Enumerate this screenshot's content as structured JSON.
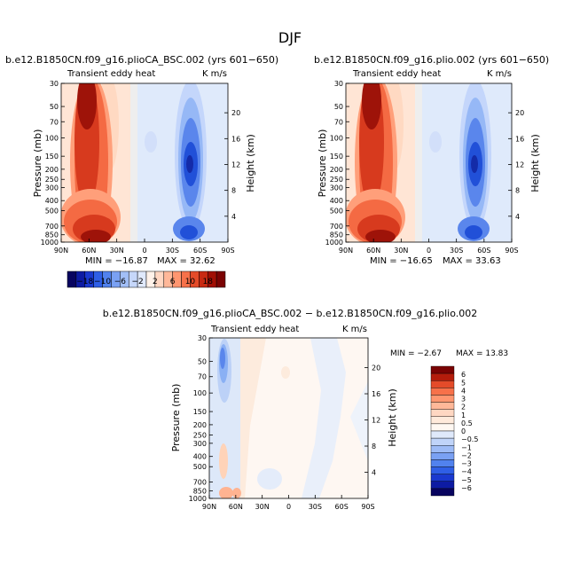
{
  "chart_data": [
    {
      "type": "heatmap",
      "figure_title": "DJF",
      "title": "b.e12.B1850CN.f09_g16.plioCA_BSC.002 (yrs 601−650)",
      "field": "Transient eddy heat",
      "units": "K m/s",
      "ylabel": "Pressure (mb)",
      "ylabel_right": "Height (km)",
      "x_ticks": [
        "90N",
        "60N",
        "30N",
        "0",
        "30S",
        "60S",
        "90S"
      ],
      "x_values": [
        90,
        60,
        30,
        0,
        -30,
        -60,
        -90
      ],
      "y_ticks": [
        "30",
        "50",
        "70",
        "100",
        "150",
        "200",
        "250",
        "300",
        "400",
        "500",
        "700",
        "850",
        "1000"
      ],
      "y_values": [
        30,
        50,
        70,
        100,
        150,
        200,
        250,
        300,
        400,
        500,
        700,
        850,
        1000
      ],
      "ylim": [
        1000,
        30
      ],
      "height_ticks": [
        "4",
        "8",
        "12",
        "16",
        "20"
      ],
      "height_values": [
        4,
        8,
        12,
        16,
        20
      ],
      "min": -16.87,
      "max": 32.62,
      "min_label": "MIN = −16.87",
      "max_label": "MAX = 32.62"
    },
    {
      "type": "heatmap",
      "title": "b.e12.B1850CN.f09_g16.plio.002 (yrs 601−650)",
      "field": "Transient eddy heat",
      "units": "K m/s",
      "ylabel": "Pressure (mb)",
      "ylabel_right": "Height (km)",
      "x_ticks": [
        "90N",
        "60N",
        "30N",
        "0",
        "30S",
        "60S",
        "90S"
      ],
      "x_values": [
        90,
        60,
        30,
        0,
        -30,
        -60,
        -90
      ],
      "y_ticks": [
        "30",
        "50",
        "70",
        "100",
        "150",
        "200",
        "250",
        "300",
        "400",
        "500",
        "700",
        "850",
        "1000"
      ],
      "y_values": [
        30,
        50,
        70,
        100,
        150,
        200,
        250,
        300,
        400,
        500,
        700,
        850,
        1000
      ],
      "ylim": [
        1000,
        30
      ],
      "height_ticks": [
        "4",
        "8",
        "12",
        "16",
        "20"
      ],
      "height_values": [
        4,
        8,
        12,
        16,
        20
      ],
      "min": -16.65,
      "max": 33.63,
      "min_label": "MIN = −16.65",
      "max_label": "MAX = 33.63"
    },
    {
      "type": "heatmap",
      "title": "b.e12.B1850CN.f09_g16.plioCA_BSC.002 − b.e12.B1850CN.f09_g16.plio.002",
      "field": "Transient eddy heat",
      "units": "K m/s",
      "ylabel": "Pressure (mb)",
      "ylabel_right": "Height (km)",
      "x_ticks": [
        "90N",
        "60N",
        "30N",
        "0",
        "30S",
        "60S",
        "90S"
      ],
      "x_values": [
        90,
        60,
        30,
        0,
        -30,
        -60,
        -90
      ],
      "y_ticks": [
        "30",
        "50",
        "70",
        "100",
        "150",
        "200",
        "250",
        "300",
        "400",
        "500",
        "700",
        "850",
        "1000"
      ],
      "y_values": [
        30,
        50,
        70,
        100,
        150,
        200,
        250,
        300,
        400,
        500,
        700,
        850,
        1000
      ],
      "ylim": [
        1000,
        30
      ],
      "height_ticks": [
        "4",
        "8",
        "12",
        "16",
        "20"
      ],
      "height_values": [
        4,
        8,
        12,
        16,
        20
      ],
      "min": -2.67,
      "max": 13.83,
      "min_label": "MIN =  −2.67",
      "max_label": "MAX =  13.83"
    }
  ],
  "colorbar_shared": {
    "orientation": "horizontal",
    "labels": [
      "−18",
      "−10",
      "−6",
      "−2",
      "2",
      "6",
      "10",
      "18"
    ],
    "colors": [
      "#08045f",
      "#0d1ba3",
      "#1a39cf",
      "#2f5fe6",
      "#5182ee",
      "#7aa1f3",
      "#a2bff7",
      "#c6d7fa",
      "#e0e9fc",
      "#fff2e9",
      "#ffd7c2",
      "#ffb899",
      "#ff9670",
      "#f7714a",
      "#e44b29",
      "#c82a12",
      "#a10f04",
      "#7a0303"
    ]
  },
  "colorbar_diff": {
    "orientation": "vertical",
    "labels": [
      "6",
      "5",
      "4",
      "3",
      "2",
      "1",
      "0.5",
      "0",
      "−0.5",
      "−1",
      "−2",
      "−3",
      "−4",
      "−5",
      "−6"
    ],
    "colors": [
      "#7a0303",
      "#b41c0b",
      "#e44b29",
      "#f7714a",
      "#ff9670",
      "#ffb899",
      "#ffd7c2",
      "#ffeadb",
      "#fff8f2",
      "#dfe9fb",
      "#c0d4f9",
      "#9dbbf6",
      "#7aa1f3",
      "#5182ee",
      "#2f5fe6",
      "#1a39cf",
      "#0d1ba3",
      "#08045f"
    ]
  }
}
